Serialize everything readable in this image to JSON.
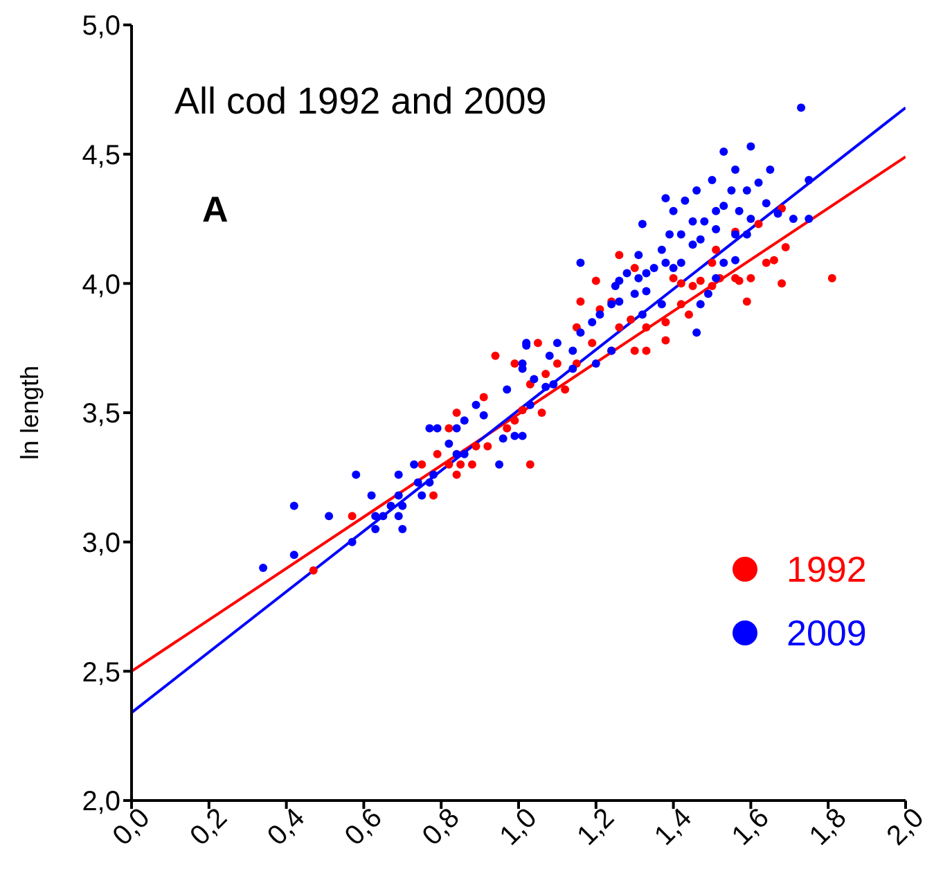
{
  "chart_data": {
    "type": "scatter",
    "title": "All cod 1992 and 2009",
    "ylabel": "ln length",
    "annotations": [
      "A"
    ],
    "xlim": [
      0,
      2
    ],
    "xticks": [
      {
        "value": 0,
        "label": "0,0"
      },
      {
        "value": 0.2,
        "label": "0,2"
      },
      {
        "value": 0.4,
        "label": "0,4"
      },
      {
        "value": 0.6,
        "label": "0,6"
      },
      {
        "value": 0.8,
        "label": "0,8"
      },
      {
        "value": 1,
        "label": "1,0"
      },
      {
        "value": 1.2,
        "label": "1,2"
      },
      {
        "value": 1.4,
        "label": "1,4"
      },
      {
        "value": 1.6,
        "label": "1,6"
      },
      {
        "value": 1.8,
        "label": "1,8"
      },
      {
        "value": 2,
        "label": "2,0"
      }
    ],
    "ylim": [
      2,
      5
    ],
    "yticks": [
      {
        "value": 2,
        "label": "2,0"
      },
      {
        "value": 2.5,
        "label": "2,5"
      },
      {
        "value": 3,
        "label": "3,0"
      },
      {
        "value": 3.5,
        "label": "3,5"
      },
      {
        "value": 4,
        "label": "4,0"
      },
      {
        "value": 4.5,
        "label": "4,5"
      },
      {
        "value": 5,
        "label": "5,0"
      }
    ],
    "legend": "right",
    "marker": "circle",
    "series": [
      {
        "name": "1992",
        "color": "#ff0000",
        "x": [
          0.47,
          0.57,
          0.75,
          0.78,
          0.79,
          0.82,
          0.82,
          0.84,
          0.85,
          0.88,
          0.84,
          0.89,
          0.91,
          0.92,
          0.94,
          0.99,
          1.03,
          1.05,
          1.06,
          0.97,
          0.99,
          1.01,
          1.26,
          1.2,
          1.16,
          1.15,
          1.21,
          1.24,
          1.3,
          1.4,
          1.42,
          1.45,
          1.47,
          1.5,
          1.52,
          1.56,
          1.57,
          1.6,
          1.59,
          1.64,
          1.66,
          1.69,
          1.68,
          1.62,
          1.56,
          1.51,
          1.5,
          1.42,
          1.38,
          1.33,
          1.29,
          1.26,
          1.24,
          1.3,
          1.33,
          1.38,
          1.44,
          1.19,
          1.15,
          1.1,
          1.07,
          1.03,
          1.12,
          1.81,
          1.68
        ],
        "values": [
          2.89,
          3.1,
          3.3,
          3.18,
          3.34,
          3.44,
          3.3,
          3.26,
          3.3,
          3.3,
          3.5,
          3.37,
          3.56,
          3.37,
          3.72,
          3.69,
          3.3,
          3.77,
          3.5,
          3.44,
          3.47,
          3.51,
          4.11,
          4.01,
          3.93,
          3.83,
          3.9,
          3.93,
          4.06,
          4.02,
          4.0,
          3.99,
          4.01,
          3.99,
          4.02,
          4.02,
          4.01,
          4.02,
          3.93,
          4.08,
          4.09,
          4.14,
          4.29,
          4.23,
          4.2,
          4.13,
          4.08,
          3.92,
          3.85,
          3.83,
          3.86,
          3.83,
          3.74,
          3.74,
          3.74,
          3.78,
          3.88,
          3.77,
          3.69,
          3.69,
          3.65,
          3.61,
          3.59,
          4.02,
          4.0
        ]
      },
      {
        "name": "2009",
        "color": "#0000ff",
        "x": [
          0.34,
          0.42,
          0.42,
          0.51,
          0.57,
          0.58,
          0.62,
          0.63,
          0.63,
          0.65,
          0.67,
          0.69,
          0.69,
          0.7,
          0.69,
          0.7,
          0.73,
          0.74,
          0.75,
          0.77,
          0.78,
          0.77,
          0.79,
          0.82,
          0.84,
          0.84,
          0.86,
          0.86,
          0.89,
          0.91,
          0.95,
          0.96,
          0.97,
          0.99,
          1.02,
          1.01,
          1.01,
          1.03,
          1.07,
          1.53,
          1.6,
          1.56,
          1.5,
          1.46,
          1.38,
          1.4,
          1.43,
          1.65,
          1.62,
          1.59,
          1.55,
          1.75,
          1.71,
          1.67,
          1.64,
          1.6,
          1.57,
          1.53,
          1.51,
          1.48,
          1.45,
          1.42,
          1.39,
          1.37,
          1.32,
          1.16,
          1.45,
          1.47,
          1.51,
          1.56,
          1.59,
          1.56,
          1.31,
          1.28,
          1.26,
          1.25,
          1.31,
          1.33,
          1.35,
          1.38,
          1.4,
          1.42,
          1.33,
          1.3,
          1.26,
          1.24,
          1.21,
          1.19,
          1.16,
          1.14,
          1.1,
          1.08,
          1.02,
          1.01,
          1.04,
          1.09,
          1.14,
          1.2,
          1.24,
          1.47,
          1.46,
          1.32,
          1.37,
          1.49,
          1.51,
          1.53,
          1.73,
          1.75
        ],
        "values": [
          2.9,
          3.14,
          2.95,
          3.1,
          3.0,
          3.26,
          3.18,
          3.05,
          3.1,
          3.1,
          3.14,
          3.18,
          3.26,
          3.14,
          3.1,
          3.05,
          3.3,
          3.23,
          3.18,
          3.23,
          3.26,
          3.44,
          3.44,
          3.38,
          3.44,
          3.34,
          3.34,
          3.47,
          3.53,
          3.49,
          3.3,
          3.4,
          3.59,
          3.41,
          3.77,
          3.41,
          3.69,
          3.53,
          3.6,
          4.51,
          4.53,
          4.44,
          4.4,
          4.36,
          4.33,
          4.28,
          4.32,
          4.44,
          4.39,
          4.36,
          4.36,
          4.25,
          4.25,
          4.27,
          4.31,
          4.25,
          4.28,
          4.3,
          4.28,
          4.24,
          4.24,
          4.19,
          4.19,
          4.13,
          4.23,
          4.08,
          4.15,
          4.17,
          4.21,
          4.19,
          4.19,
          4.09,
          4.11,
          4.04,
          4.01,
          3.99,
          4.02,
          4.04,
          4.06,
          4.08,
          4.06,
          4.08,
          3.97,
          3.96,
          3.93,
          3.92,
          3.88,
          3.85,
          3.81,
          3.74,
          3.77,
          3.72,
          3.76,
          3.67,
          3.63,
          3.61,
          3.67,
          3.69,
          3.74,
          3.92,
          3.81,
          3.88,
          3.92,
          3.96,
          4.02,
          4.08,
          4.68,
          4.4
        ]
      },
      {
        "type": "line",
        "marker": "none",
        "color": "#ff0000",
        "x": [
          0,
          2
        ],
        "values": [
          2.5,
          4.49
        ]
      },
      {
        "type": "line",
        "marker": "none",
        "color": "#0000ff",
        "x": [
          0,
          2
        ],
        "values": [
          2.34,
          4.68
        ]
      }
    ]
  }
}
